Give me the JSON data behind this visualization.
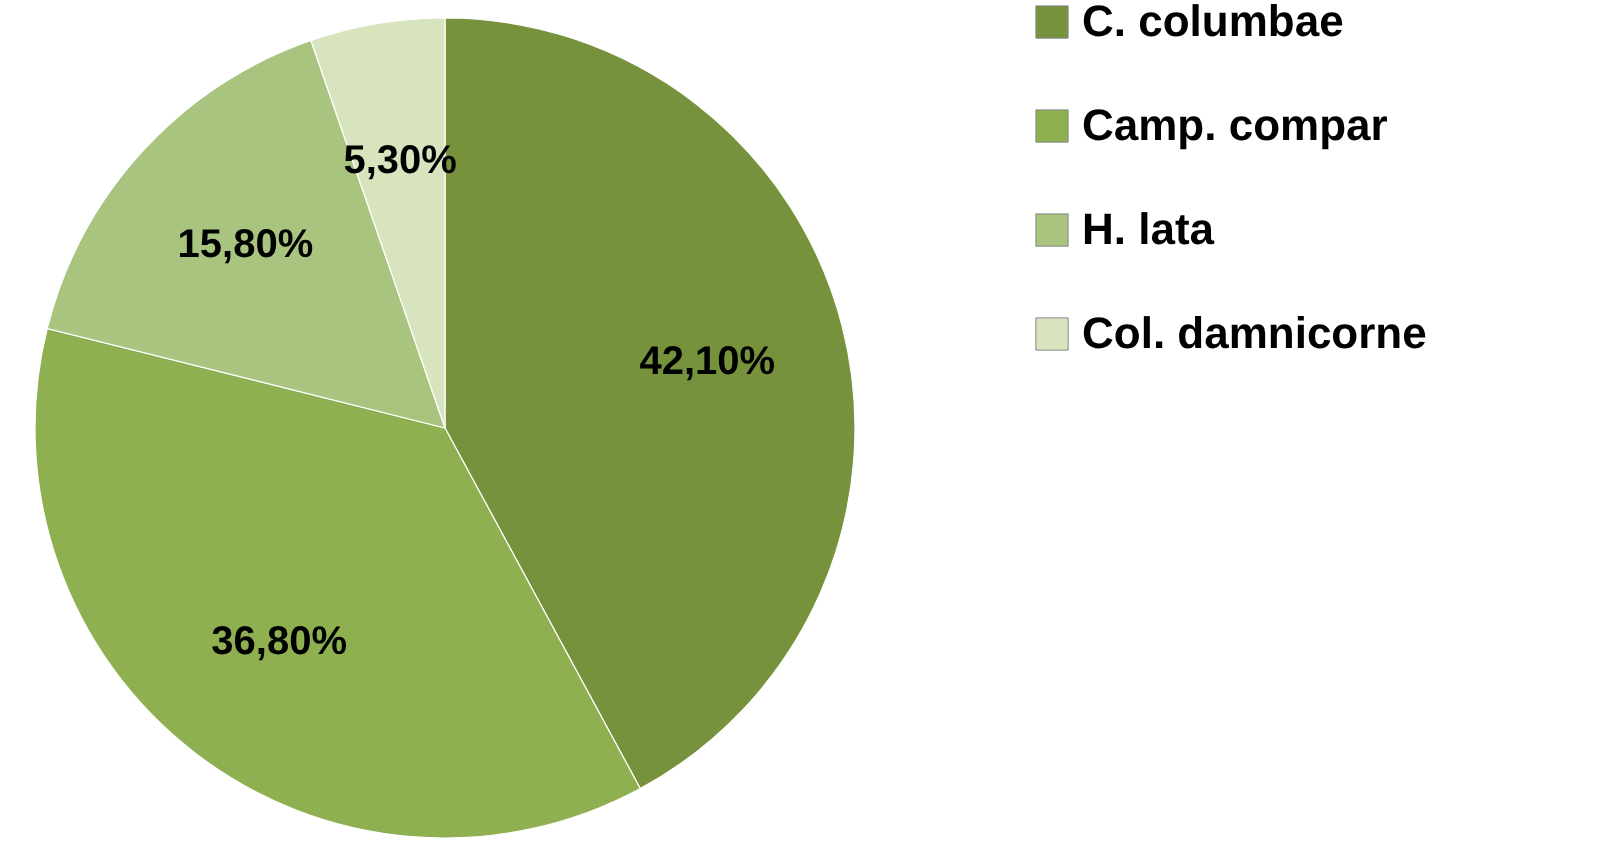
{
  "chart_data": {
    "type": "pie",
    "categories": [
      "C. columbae",
      "Camp. compar",
      "H. lata",
      "Col. damnicorne"
    ],
    "values": [
      42.1,
      36.8,
      15.8,
      5.3
    ],
    "colors": [
      "#76923c",
      "#8fb050",
      "#a9c47f",
      "#d7e4bd"
    ],
    "value_labels": [
      "42,10%",
      "36,80%",
      "15,80%",
      "5,30%"
    ],
    "legend": "right"
  }
}
